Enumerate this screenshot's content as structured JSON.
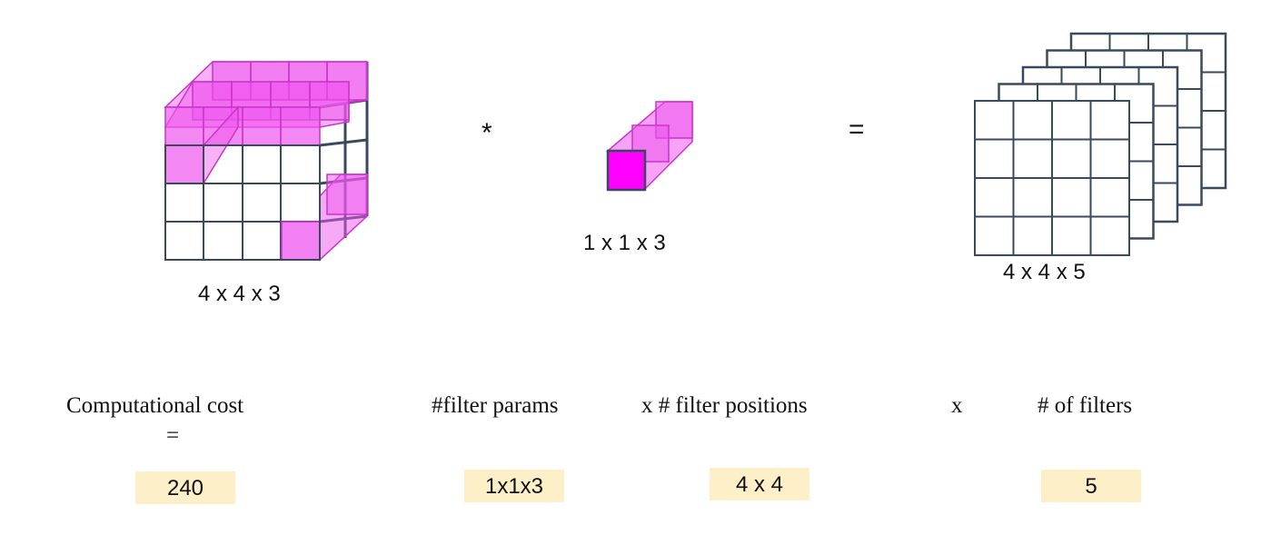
{
  "colors": {
    "cube_fill": "#ee55ee",
    "filter_front": "#ff00ff",
    "grid_line": "#3a4a5e",
    "value_box": "#fdefc8"
  },
  "input": {
    "label": "4 x 4 x 3"
  },
  "operators": {
    "convolve": "*",
    "equals": "="
  },
  "filter": {
    "label": "1 x 1 x 3"
  },
  "output": {
    "label": "4 x 4 x 5",
    "stack_count": 5
  },
  "formula": {
    "cost_label": "Computational cost",
    "cost_equals": "=",
    "params_label": "#filter params",
    "positions_label": "x # filter positions",
    "times": "x",
    "filters_label": "# of filters"
  },
  "values": {
    "cost": "240",
    "params": "1x1x3",
    "positions": "4 x 4",
    "filters": "5"
  }
}
